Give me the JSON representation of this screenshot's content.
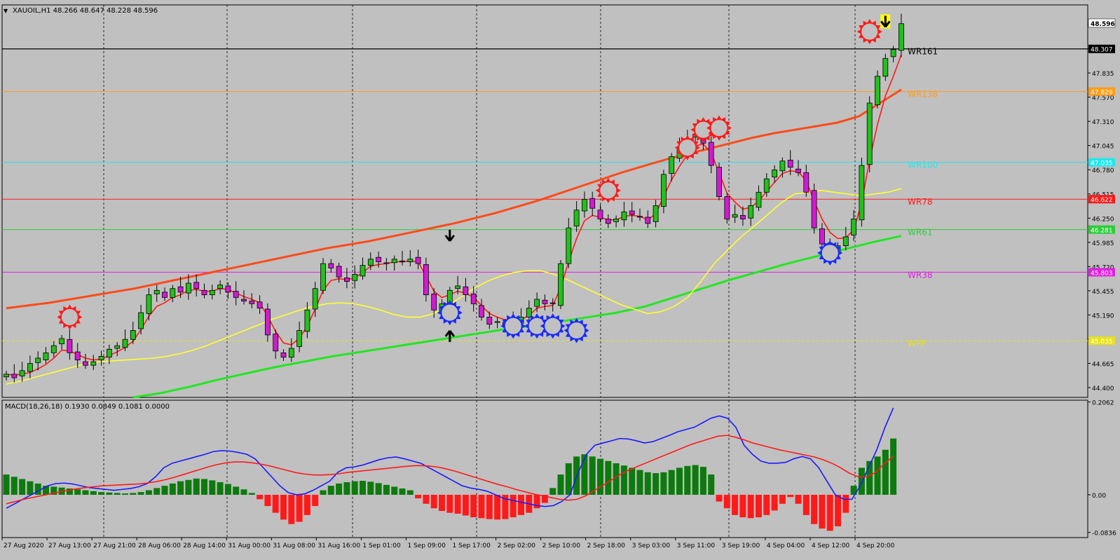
{
  "chart_data": [
    {
      "type": "candlestick",
      "title": "XAUOIL,H1  48.266 48.647 48.228 48.596",
      "symbol_marker": "▼",
      "ylim": [
        44.4,
        48.8
      ],
      "y_ticks": [
        "48.365",
        "48.100",
        "47.835",
        "47.570",
        "47.310",
        "47.045",
        "46.780",
        "46.515",
        "46.250",
        "45.985",
        "45.720",
        "45.455",
        "45.190",
        "44.925",
        "44.665",
        "44.400"
      ],
      "x_ticks": [
        "27 Aug 2020",
        "27 Aug 13:00",
        "27 Aug 21:00",
        "28 Aug 06:00",
        "28 Aug 14:00",
        "31 Aug 00:00",
        "31 Aug 08:00",
        "31 Aug 16:00",
        "1 Sep 01:00",
        "1 Sep 09:00",
        "1 Sep 17:00",
        "2 Sep 02:00",
        "2 Sep 10:00",
        "2 Sep 18:00",
        "3 Sep 03:00",
        "3 Sep 11:00",
        "3 Sep 19:00",
        "4 Sep 04:00",
        "4 Sep 12:00",
        "4 Sep 20:00"
      ],
      "current_price": "48.596",
      "current_price_value": 48.596,
      "bid_line_label": "48.307",
      "bid_line_value": 48.307,
      "levels": [
        {
          "name": "WR161",
          "value": 48.307,
          "color": "#000000",
          "price_label": "48.307"
        },
        {
          "name": "WR138",
          "value": 47.829,
          "color": "#ff9c1a",
          "price_label": "47.829"
        },
        {
          "name": "WR100",
          "value": 47.035,
          "color": "#22e6ee",
          "price_label": "47.035"
        },
        {
          "name": "WR78",
          "value": 46.622,
          "color": "#ff1a1a",
          "price_label": "46.622"
        },
        {
          "name": "WR61",
          "value": 46.281,
          "color": "#2ecc3a",
          "price_label": "46.281"
        },
        {
          "name": "WR38",
          "value": 45.803,
          "color": "#e020e0",
          "price_label": "45.803"
        },
        {
          "name": "WPP",
          "value": 45.035,
          "color": "#e6e21a",
          "price_label": "45.035"
        }
      ],
      "price_path": [
        44.66,
        44.62,
        44.7,
        44.78,
        44.84,
        44.9,
        44.98,
        45.06,
        44.9,
        44.82,
        44.76,
        44.8,
        44.86,
        44.94,
        44.98,
        45.05,
        45.15,
        45.35,
        45.55,
        45.6,
        45.52,
        45.62,
        45.58,
        45.68,
        45.62,
        45.55,
        45.6,
        45.66,
        45.58,
        45.52,
        45.48,
        45.45,
        45.4,
        45.1,
        44.92,
        44.85,
        44.95,
        45.15,
        45.38,
        45.62,
        45.9,
        45.85,
        45.75,
        45.7,
        45.78,
        45.88,
        45.95,
        45.92,
        45.9,
        45.95,
        45.92,
        45.95,
        45.9,
        45.55,
        45.38,
        45.45,
        45.6,
        45.65,
        45.55,
        45.45,
        45.3,
        45.22,
        45.25,
        45.22,
        45.25,
        45.3,
        45.4,
        45.5,
        45.45,
        45.45,
        45.9,
        46.3,
        46.5,
        46.62,
        46.52,
        46.4,
        46.35,
        46.4,
        46.48,
        46.45,
        46.42,
        46.35,
        46.55,
        46.9,
        47.1,
        47.2,
        47.3,
        47.35,
        47.25,
        47.0,
        46.65,
        46.4,
        46.45,
        46.4,
        46.55,
        46.7,
        46.85,
        46.95,
        47.05,
        46.98,
        46.92,
        46.7,
        46.3,
        46.12,
        46.05,
        46.1,
        46.2,
        46.4,
        47.0,
        47.7,
        48.0,
        48.2,
        48.3,
        48.59
      ],
      "ema_fast": [
        44.66,
        44.65,
        44.66,
        44.68,
        44.72,
        44.77,
        44.84,
        44.93,
        44.92,
        44.88,
        44.84,
        44.82,
        44.83,
        44.87,
        44.91,
        44.96,
        45.03,
        45.16,
        45.31,
        45.42,
        45.46,
        45.52,
        45.55,
        45.6,
        45.61,
        45.59,
        45.59,
        45.62,
        45.61,
        45.57,
        45.53,
        45.5,
        45.46,
        45.31,
        45.14,
        45.01,
        44.99,
        45.06,
        45.2,
        45.39,
        45.6,
        45.71,
        45.73,
        45.72,
        45.74,
        45.8,
        45.87,
        45.89,
        45.9,
        45.92,
        45.92,
        45.93,
        45.92,
        45.76,
        45.59,
        45.52,
        45.55,
        45.59,
        45.57,
        45.52,
        45.43,
        45.34,
        45.3,
        45.27,
        45.26,
        45.27,
        45.32,
        45.4,
        45.42,
        45.43,
        45.63,
        45.92,
        46.18,
        46.38,
        46.44,
        46.42,
        46.39,
        46.39,
        46.43,
        46.44,
        46.43,
        46.39,
        46.46,
        46.65,
        46.84,
        46.99,
        47.12,
        47.22,
        47.24,
        47.14,
        46.92,
        46.69,
        46.59,
        46.51,
        46.53,
        46.6,
        46.71,
        46.81,
        46.91,
        46.94,
        46.93,
        46.83,
        46.6,
        46.4,
        46.25,
        46.18,
        46.19,
        46.28,
        46.58,
        47.06,
        47.46,
        47.78,
        48.0,
        48.24
      ],
      "ma_yellow": [
        44.55,
        44.58,
        44.62,
        44.66,
        44.7,
        44.74,
        44.78,
        44.8,
        44.81,
        44.82,
        44.83,
        44.84,
        44.86,
        44.89,
        44.93,
        44.98,
        45.04,
        45.1,
        45.16,
        45.22,
        45.28,
        45.33,
        45.38,
        45.42,
        45.45,
        45.46,
        45.45,
        45.42,
        45.38,
        45.33,
        45.3,
        45.3,
        45.34,
        45.42,
        45.52,
        45.62,
        45.7,
        45.76,
        45.8,
        45.82,
        45.82,
        45.78,
        45.72,
        45.65,
        45.58,
        45.51,
        45.44,
        45.39,
        45.34,
        45.36,
        45.42,
        45.52,
        45.7,
        45.9,
        46.05,
        46.2,
        46.32,
        46.45,
        46.58,
        46.68,
        46.7,
        46.72,
        46.7,
        46.68,
        46.66,
        46.68,
        46.7,
        46.74
      ],
      "ma_yellow_start": 0,
      "ma_yellow_note": "",
      "ema_slow_orange": [
        45.4,
        45.43,
        45.46,
        45.5,
        45.54,
        45.58,
        45.62,
        45.67,
        45.72,
        45.77,
        45.82,
        45.87,
        45.92,
        45.97,
        46.02,
        46.07,
        46.11,
        46.15,
        46.2,
        46.25,
        46.3,
        46.35,
        46.41,
        46.47,
        46.54,
        46.61,
        46.69,
        46.77,
        46.85,
        46.93,
        47.0,
        47.07,
        47.13,
        47.19,
        47.25,
        47.31,
        47.36,
        47.4,
        47.44,
        47.48,
        47.55,
        47.7,
        47.85
      ],
      "ema_green": [
        44.4,
        44.45,
        44.52,
        44.6,
        44.67,
        44.74,
        44.8,
        44.86,
        44.91,
        44.96,
        45.01,
        45.06,
        45.11,
        45.16,
        45.2,
        45.25,
        45.3,
        45.35,
        45.42,
        45.52,
        45.62,
        45.72,
        45.81,
        45.9,
        45.98,
        46.06,
        46.14,
        46.21
      ],
      "swing_high_markers": [
        {
          "i": 8,
          "v": 45.3
        },
        {
          "i": 76,
          "v": 46.72
        },
        {
          "i": 86,
          "v": 47.2
        },
        {
          "i": 88,
          "v": 47.4
        },
        {
          "i": 90,
          "v": 47.42
        },
        {
          "i": 109,
          "v": 48.5
        }
      ],
      "swing_low_markers": [
        {
          "i": 56,
          "v": 45.35
        },
        {
          "i": 64,
          "v": 45.2
        },
        {
          "i": 67,
          "v": 45.2
        },
        {
          "i": 69,
          "v": 45.2
        },
        {
          "i": 72,
          "v": 45.15
        },
        {
          "i": 104,
          "v": 46.02
        }
      ],
      "arrows": [
        {
          "i": 56,
          "v": 46.2,
          "dir": "down",
          "color": "#000000"
        },
        {
          "i": 56,
          "v": 45.1,
          "dir": "up",
          "color": "#000000"
        },
        {
          "i": 111,
          "v": 48.6,
          "dir": "down",
          "color": "#000000",
          "halo": "#ffff00"
        }
      ]
    },
    {
      "type": "macd",
      "title": "MACD(18,26,18) 0.1930 0.0849 0.1081 0.0000",
      "ylim": [
        -0.095,
        0.21
      ],
      "y_ticks": [
        "0.2062",
        "0.00",
        "-0.0836"
      ],
      "y_tick_values": [
        0.2062,
        0.0,
        -0.0836
      ],
      "histogram": [
        0.045,
        0.04,
        0.035,
        0.03,
        0.025,
        0.02,
        0.018,
        0.016,
        0.014,
        0.012,
        0.01,
        0.008,
        0.006,
        0.005,
        0.004,
        0.003,
        0.004,
        0.006,
        0.01,
        0.015,
        0.02,
        0.025,
        0.03,
        0.033,
        0.036,
        0.035,
        0.032,
        0.028,
        0.024,
        0.018,
        0.012,
        0.004,
        -0.01,
        -0.025,
        -0.04,
        -0.055,
        -0.065,
        -0.06,
        -0.045,
        -0.025,
        0.01,
        0.02,
        0.025,
        0.028,
        0.03,
        0.031,
        0.029,
        0.026,
        0.022,
        0.018,
        0.014,
        0.01,
        -0.008,
        -0.02,
        -0.03,
        -0.036,
        -0.04,
        -0.042,
        -0.046,
        -0.05,
        -0.052,
        -0.054,
        -0.055,
        -0.054,
        -0.05,
        -0.045,
        -0.04,
        -0.03,
        -0.018,
        0.015,
        0.045,
        0.07,
        0.085,
        0.09,
        0.085,
        0.08,
        0.075,
        0.07,
        0.065,
        0.06,
        0.055,
        0.05,
        0.048,
        0.05,
        0.055,
        0.06,
        0.064,
        0.066,
        0.062,
        0.045,
        -0.015,
        -0.03,
        -0.045,
        -0.05,
        -0.052,
        -0.05,
        -0.045,
        -0.035,
        -0.02,
        -0.005,
        -0.02,
        -0.045,
        -0.065,
        -0.075,
        -0.08,
        -0.07,
        -0.04,
        0.02,
        0.06,
        0.075,
        0.085,
        0.1,
        0.125
      ],
      "macd_line": [
        -0.03,
        -0.02,
        -0.01,
        0.0,
        0.01,
        0.02,
        0.025,
        0.026,
        0.024,
        0.02,
        0.016,
        0.014,
        0.012,
        0.01,
        0.012,
        0.014,
        0.018,
        0.025,
        0.04,
        0.06,
        0.07,
        0.075,
        0.08,
        0.085,
        0.09,
        0.096,
        0.098,
        0.097,
        0.094,
        0.09,
        0.08,
        0.06,
        0.04,
        0.02,
        0.005,
        0.0,
        0.002,
        0.01,
        0.02,
        0.03,
        0.05,
        0.06,
        0.062,
        0.066,
        0.072,
        0.078,
        0.082,
        0.084,
        0.08,
        0.075,
        0.07,
        0.06,
        0.05,
        0.04,
        0.03,
        0.02,
        0.015,
        0.012,
        0.008,
        0.0,
        -0.008,
        -0.012,
        -0.016,
        -0.02,
        -0.024,
        -0.026,
        -0.024,
        -0.015,
        0.0,
        0.05,
        0.09,
        0.11,
        0.115,
        0.12,
        0.125,
        0.124,
        0.12,
        0.115,
        0.118,
        0.125,
        0.132,
        0.14,
        0.145,
        0.15,
        0.16,
        0.17,
        0.175,
        0.17,
        0.15,
        0.11,
        0.09,
        0.075,
        0.07,
        0.07,
        0.072,
        0.08,
        0.085,
        0.08,
        0.06,
        0.03,
        0.0,
        -0.01,
        -0.01,
        0.02,
        0.06,
        0.1,
        0.15,
        0.193
      ],
      "signal_line": [
        -0.02,
        -0.015,
        -0.01,
        -0.006,
        -0.002,
        0.002,
        0.006,
        0.01,
        0.013,
        0.016,
        0.018,
        0.02,
        0.021,
        0.022,
        0.023,
        0.024,
        0.026,
        0.029,
        0.033,
        0.038,
        0.044,
        0.05,
        0.056,
        0.062,
        0.067,
        0.071,
        0.073,
        0.073,
        0.071,
        0.068,
        0.064,
        0.059,
        0.054,
        0.049,
        0.046,
        0.044,
        0.044,
        0.045,
        0.047,
        0.05,
        0.052,
        0.054,
        0.056,
        0.058,
        0.06,
        0.062,
        0.064,
        0.065,
        0.064,
        0.062,
        0.058,
        0.053,
        0.047,
        0.041,
        0.035,
        0.029,
        0.023,
        0.018,
        0.012,
        0.007,
        0.002,
        -0.002,
        -0.006,
        -0.01,
        -0.012,
        -0.01,
        -0.002,
        0.01,
        0.022,
        0.034,
        0.046,
        0.056,
        0.064,
        0.072,
        0.08,
        0.088,
        0.096,
        0.104,
        0.112,
        0.118,
        0.124,
        0.13,
        0.132,
        0.128,
        0.122,
        0.115,
        0.11,
        0.105,
        0.1,
        0.096,
        0.092,
        0.088,
        0.084,
        0.078,
        0.07,
        0.06,
        0.048,
        0.04,
        0.04,
        0.05,
        0.07,
        0.085
      ]
    }
  ]
}
